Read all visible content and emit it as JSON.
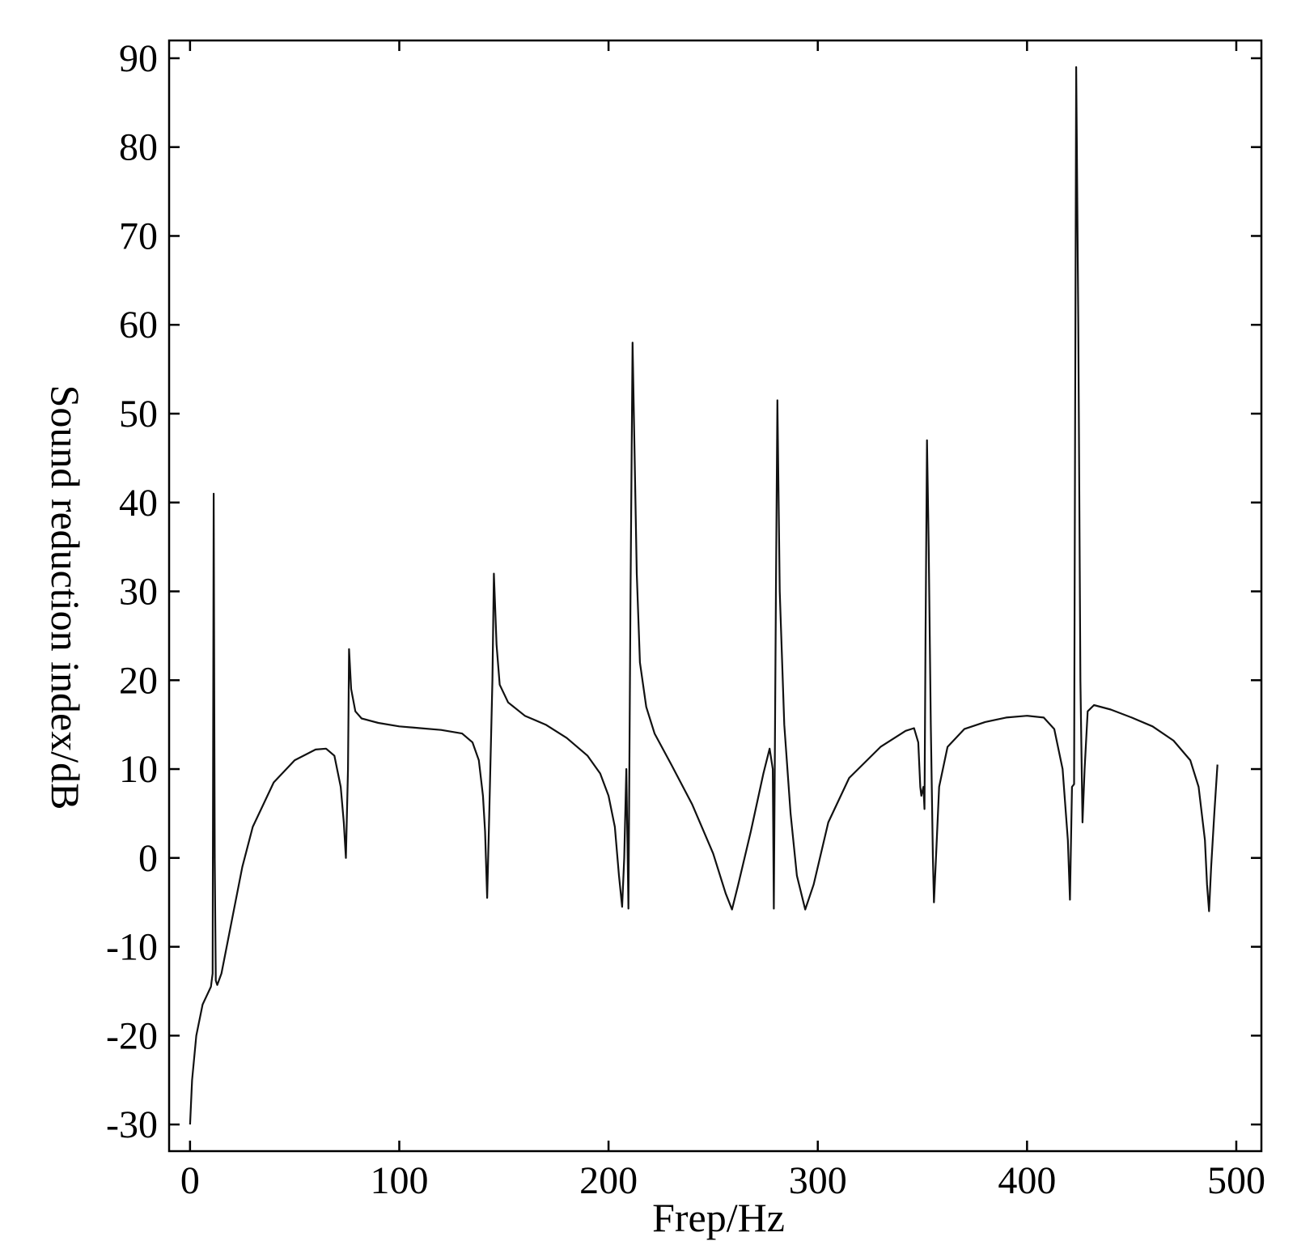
{
  "chart_data": {
    "type": "line",
    "title": "",
    "xlabel": "Frep/Hz",
    "ylabel": "Sound reduction index/dB",
    "xlim": [
      -10,
      512
    ],
    "ylim": [
      -33,
      92
    ],
    "xticks": [
      0,
      100,
      200,
      300,
      400,
      500
    ],
    "yticks": [
      -30,
      -20,
      -10,
      0,
      10,
      20,
      30,
      40,
      50,
      60,
      70,
      80,
      90
    ],
    "grid": false,
    "series": [
      {
        "points": [
          [
            0,
            -30
          ],
          [
            1,
            -25
          ],
          [
            3,
            -20
          ],
          [
            6,
            -16.5
          ],
          [
            10,
            -14.5
          ],
          [
            10.8,
            -13
          ],
          [
            11.3,
            41
          ],
          [
            11.8,
            0
          ],
          [
            12.3,
            -13.8
          ],
          [
            13,
            -14.3
          ],
          [
            15,
            -13
          ],
          [
            20,
            -7
          ],
          [
            25,
            -1
          ],
          [
            30,
            3.5
          ],
          [
            40,
            8.5
          ],
          [
            50,
            11
          ],
          [
            60,
            12.2
          ],
          [
            65,
            12.3
          ],
          [
            69,
            11.5
          ],
          [
            72,
            8
          ],
          [
            73.5,
            4
          ],
          [
            74.5,
            0
          ],
          [
            75.5,
            10
          ],
          [
            76,
            23.5
          ],
          [
            77,
            19
          ],
          [
            79,
            16.5
          ],
          [
            82,
            15.7
          ],
          [
            90,
            15.2
          ],
          [
            100,
            14.8
          ],
          [
            110,
            14.6
          ],
          [
            120,
            14.4
          ],
          [
            130,
            14
          ],
          [
            135,
            13
          ],
          [
            138,
            11
          ],
          [
            140,
            7
          ],
          [
            141,
            3
          ],
          [
            142,
            -4.5
          ],
          [
            143,
            5
          ],
          [
            144.5,
            20
          ],
          [
            145.2,
            32
          ],
          [
            146.5,
            24
          ],
          [
            148,
            19.5
          ],
          [
            152,
            17.5
          ],
          [
            160,
            16
          ],
          [
            170,
            15
          ],
          [
            180,
            13.5
          ],
          [
            190,
            11.5
          ],
          [
            196,
            9.5
          ],
          [
            200,
            7
          ],
          [
            203,
            3.5
          ],
          [
            205,
            -2
          ],
          [
            206.5,
            -5.5
          ],
          [
            207.5,
            0
          ],
          [
            208.5,
            10
          ],
          [
            209.5,
            -5.7
          ],
          [
            210.5,
            30
          ],
          [
            211.5,
            58
          ],
          [
            212.5,
            45
          ],
          [
            213.5,
            32
          ],
          [
            215,
            22
          ],
          [
            218,
            17
          ],
          [
            222,
            14
          ],
          [
            230,
            10.5
          ],
          [
            240,
            6
          ],
          [
            250,
            0.5
          ],
          [
            256,
            -4
          ],
          [
            259,
            -5.8
          ],
          [
            262,
            -3
          ],
          [
            268,
            3
          ],
          [
            274,
            9.5
          ],
          [
            277,
            12.3
          ],
          [
            278.5,
            10
          ],
          [
            279,
            -5.7
          ],
          [
            280,
            30
          ],
          [
            280.7,
            51.5
          ],
          [
            281.8,
            30
          ],
          [
            284,
            15
          ],
          [
            287,
            5
          ],
          [
            290,
            -2
          ],
          [
            294,
            -5.8
          ],
          [
            298,
            -3
          ],
          [
            305,
            4
          ],
          [
            315,
            9
          ],
          [
            330,
            12.5
          ],
          [
            342,
            14.3
          ],
          [
            346,
            14.6
          ],
          [
            348,
            13
          ],
          [
            349,
            8
          ],
          [
            349.5,
            7
          ],
          [
            350.5,
            8
          ],
          [
            351,
            5.5
          ],
          [
            351.5,
            25
          ],
          [
            352.2,
            47
          ],
          [
            353,
            35
          ],
          [
            354,
            15
          ],
          [
            355,
            0
          ],
          [
            355.5,
            -5
          ],
          [
            356.5,
            0
          ],
          [
            358,
            8
          ],
          [
            362,
            12.5
          ],
          [
            370,
            14.5
          ],
          [
            380,
            15.3
          ],
          [
            390,
            15.8
          ],
          [
            400,
            16
          ],
          [
            408,
            15.8
          ],
          [
            413,
            14.5
          ],
          [
            417,
            10
          ],
          [
            419.5,
            2
          ],
          [
            420.5,
            -4.7
          ],
          [
            421.5,
            8
          ],
          [
            422.5,
            8.3
          ],
          [
            423,
            50
          ],
          [
            423.5,
            89
          ],
          [
            424.5,
            60
          ],
          [
            425.5,
            20
          ],
          [
            426.5,
            4
          ],
          [
            427.5,
            10
          ],
          [
            429,
            16.5
          ],
          [
            432,
            17.2
          ],
          [
            440,
            16.7
          ],
          [
            450,
            15.8
          ],
          [
            460,
            14.8
          ],
          [
            470,
            13.2
          ],
          [
            478,
            11
          ],
          [
            482,
            8
          ],
          [
            485,
            2
          ],
          [
            486,
            -3
          ],
          [
            487,
            -6
          ],
          [
            488,
            -1
          ],
          [
            489.5,
            5
          ],
          [
            491,
            10.5
          ]
        ]
      }
    ]
  }
}
